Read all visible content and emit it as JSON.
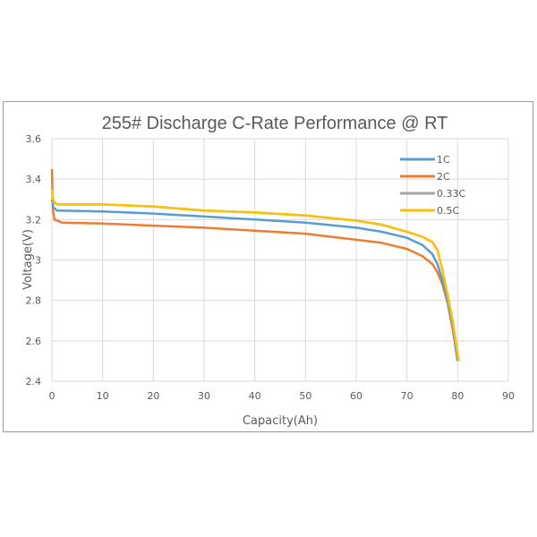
{
  "chart_data": {
    "type": "line",
    "title": "255# Discharge C-Rate Performance @ RT",
    "xlabel": "Capacity(Ah)",
    "ylabel": "Voltage(V)",
    "xlim": [
      0,
      90
    ],
    "ylim": [
      2.4,
      3.6
    ],
    "xticks": [
      "0",
      "10",
      "20",
      "30",
      "40",
      "50",
      "60",
      "70",
      "80",
      "90"
    ],
    "yticks": [
      "2.4",
      "2.6",
      "2.8",
      "3",
      "3.2",
      "3.4",
      "3.6"
    ],
    "grid": true,
    "legend": "top-right",
    "series": [
      {
        "name": "1C",
        "color": "#5b9bd5",
        "x": [
          0,
          0.3,
          1,
          10,
          20,
          30,
          40,
          50,
          60,
          65,
          70,
          73,
          75,
          76,
          77,
          78,
          79,
          80
        ],
        "y": [
          3.3,
          3.26,
          3.245,
          3.24,
          3.23,
          3.215,
          3.2,
          3.185,
          3.16,
          3.14,
          3.11,
          3.075,
          3.03,
          2.98,
          2.9,
          2.8,
          2.68,
          2.5
        ]
      },
      {
        "name": "2C",
        "color": "#ed7d31",
        "x": [
          0,
          0.2,
          0.5,
          2,
          10,
          20,
          30,
          40,
          50,
          60,
          65,
          70,
          73,
          75,
          76,
          77,
          78,
          79,
          80
        ],
        "y": [
          3.45,
          3.25,
          3.2,
          3.185,
          3.18,
          3.17,
          3.16,
          3.145,
          3.13,
          3.1,
          3.085,
          3.055,
          3.02,
          2.98,
          2.94,
          2.88,
          2.79,
          2.66,
          2.5
        ]
      },
      {
        "name": "0.33C",
        "color": "#a5a5a5",
        "x": [
          0,
          0.3,
          1,
          10,
          20,
          30,
          40,
          50,
          60,
          65,
          70,
          73,
          75,
          76,
          77,
          78,
          79,
          80.2
        ],
        "y": [
          3.34,
          3.29,
          3.275,
          3.275,
          3.265,
          3.245,
          3.235,
          3.22,
          3.195,
          3.175,
          3.14,
          3.115,
          3.09,
          3.05,
          2.95,
          2.83,
          2.7,
          2.5
        ]
      },
      {
        "name": "0.5C",
        "color": "#ffc000",
        "x": [
          0,
          0.3,
          1,
          10,
          20,
          30,
          40,
          50,
          60,
          65,
          70,
          73,
          75,
          76,
          77,
          78,
          79,
          80.2
        ],
        "y": [
          3.35,
          3.29,
          3.275,
          3.275,
          3.265,
          3.245,
          3.235,
          3.22,
          3.195,
          3.175,
          3.14,
          3.115,
          3.09,
          3.05,
          2.95,
          2.83,
          2.7,
          2.5
        ]
      }
    ]
  }
}
